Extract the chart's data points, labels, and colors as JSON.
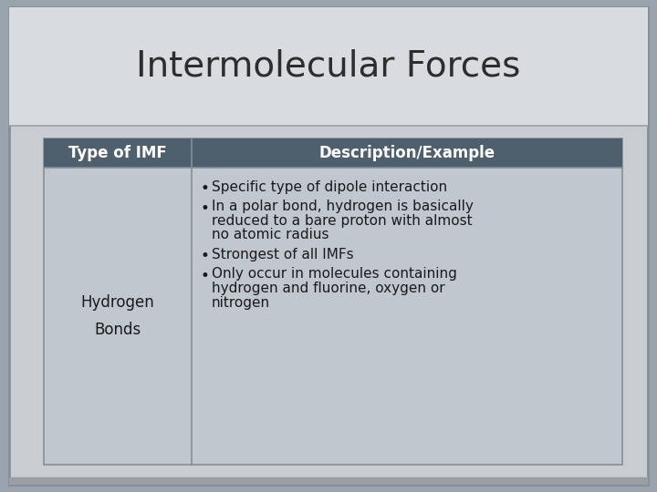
{
  "title": "Intermolecular Forces",
  "title_fontsize": 28,
  "title_color": "#2d2d2d",
  "outer_bg": "#9aa4ae",
  "slide_bg": "#c8cdd2",
  "title_bg": "#d8dce0",
  "header_bg": "#4e5f6d",
  "header_text_color": "#ffffff",
  "header_col1": "Type of IMF",
  "header_col2": "Description/Example",
  "table_bg": "#c0c7ce",
  "col1_text": "Hydrogen\nBonds",
  "col2_bullets": [
    "Specific type of dipole interaction",
    "In a polar bond, hydrogen is basically\nreduced to a bare proton with almost\nno atomic radius",
    "Strongest of all IMFs",
    "Only occur in molecules containing\nhydrogen and fluorine, oxygen or\nnitrogen"
  ],
  "cell_text_color": "#1a1a1a",
  "cell_fontsize": 11,
  "header_fontsize": 12,
  "border_color": "#888e94",
  "separator_color": "#999fa5"
}
